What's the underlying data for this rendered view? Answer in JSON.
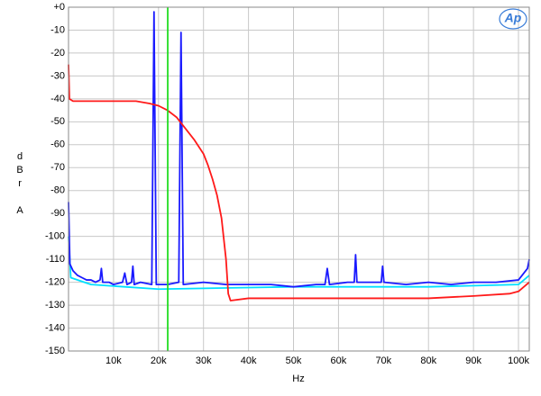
{
  "chart_data": {
    "type": "line",
    "logo": "Ap",
    "x_label": "Hz",
    "y_label": "dBr A",
    "xlim": [
      0,
      102400
    ],
    "ylim": [
      -150,
      0
    ],
    "grid": true,
    "xticks": [
      {
        "value": 10000,
        "label": "10k"
      },
      {
        "value": 20000,
        "label": "20k"
      },
      {
        "value": 30000,
        "label": "30k"
      },
      {
        "value": 40000,
        "label": "40k"
      },
      {
        "value": 50000,
        "label": "50k"
      },
      {
        "value": 60000,
        "label": "60k"
      },
      {
        "value": 70000,
        "label": "70k"
      },
      {
        "value": 80000,
        "label": "80k"
      },
      {
        "value": 90000,
        "label": "90k"
      },
      {
        "value": 100000,
        "label": "100k"
      }
    ],
    "yticks": [
      {
        "value": 0,
        "label": "+0"
      },
      -10,
      -20,
      -30,
      -40,
      -50,
      -60,
      -70,
      -80,
      -90,
      -100,
      -110,
      -120,
      -130,
      -140,
      -150
    ],
    "series": [
      {
        "color": "#00e0ff",
        "x": [
          0,
          500,
          5000,
          20000,
          50000,
          80000,
          100000,
          102400
        ],
        "values": [
          -100,
          -118,
          -121,
          -123,
          -122,
          -122,
          -121,
          -117
        ]
      },
      {
        "color": "#1a1aff",
        "x": [
          0,
          300,
          1000,
          2000,
          3000,
          4000,
          5000,
          6000,
          7000,
          7300,
          7600,
          9000,
          10000,
          12000,
          12500,
          13000,
          14000,
          14300,
          14600,
          16000,
          18500,
          19000,
          19500,
          22000,
          24500,
          25000,
          25500,
          30000,
          35000,
          40000,
          45000,
          50000,
          55000,
          57000,
          57500,
          58000,
          62000,
          63500,
          63800,
          64100,
          66000,
          69500,
          69800,
          70100,
          75000,
          80000,
          85000,
          90000,
          95000,
          100000,
          102000,
          102400
        ],
        "values": [
          -85,
          -112,
          -115,
          -117,
          -118,
          -119,
          -119,
          -120,
          -119,
          -114,
          -120,
          -120,
          -121,
          -120,
          -116,
          -121,
          -120,
          -113,
          -121,
          -120,
          -121,
          -2,
          -121,
          -121,
          -120,
          -11,
          -121,
          -120,
          -121,
          -121,
          -121,
          -122,
          -121,
          -121,
          -114,
          -121,
          -120,
          -120,
          -108,
          -120,
          -120,
          -120,
          -113,
          -120,
          -121,
          -120,
          -121,
          -120,
          -120,
          -119,
          -114,
          -110
        ]
      },
      {
        "color": "#ff1a1a",
        "x": [
          0,
          200,
          1000,
          5000,
          10000,
          15000,
          18000,
          20000,
          22000,
          24000,
          26000,
          28000,
          30000,
          31000,
          32000,
          33000,
          34000,
          35000,
          35500,
          36000,
          40000,
          50000,
          60000,
          70000,
          80000,
          90000,
          98000,
          100000,
          102400
        ],
        "values": [
          -25,
          -40,
          -41,
          -41,
          -41,
          -41,
          -42,
          -43,
          -45,
          -48,
          -53,
          -58,
          -64,
          -69,
          -75,
          -82,
          -92,
          -110,
          -125,
          -128,
          -127,
          -127,
          -127,
          -127,
          -127,
          -126,
          -125,
          -124,
          -120
        ]
      },
      {
        "color": "#22dd22",
        "x": [
          22050,
          22050
        ],
        "values": [
          -150,
          0
        ]
      }
    ]
  }
}
